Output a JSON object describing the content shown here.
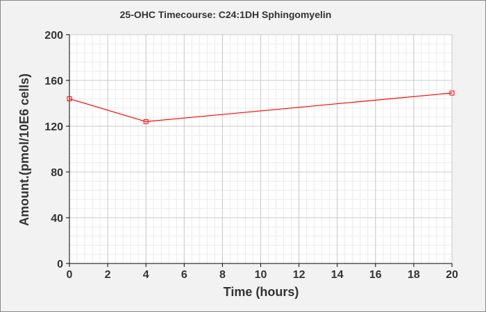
{
  "chart_data": {
    "type": "line",
    "title": "25-OHC Timecourse: C24:1DH Sphingomyelin",
    "xlabel": "Time (hours)",
    "ylabel": "Amount.(pmol/10E6 cells)",
    "xlim": [
      0,
      20
    ],
    "ylim": [
      0,
      200
    ],
    "xticks": [
      0,
      2,
      4,
      6,
      8,
      10,
      12,
      14,
      16,
      18,
      20
    ],
    "yticks": [
      0,
      40,
      80,
      120,
      160,
      200
    ],
    "grid": true,
    "legend": "none",
    "series": [
      {
        "x": [
          0,
          4,
          20
        ],
        "y": [
          144,
          124,
          149
        ],
        "color": "#ff0000",
        "marker": "square"
      }
    ]
  }
}
